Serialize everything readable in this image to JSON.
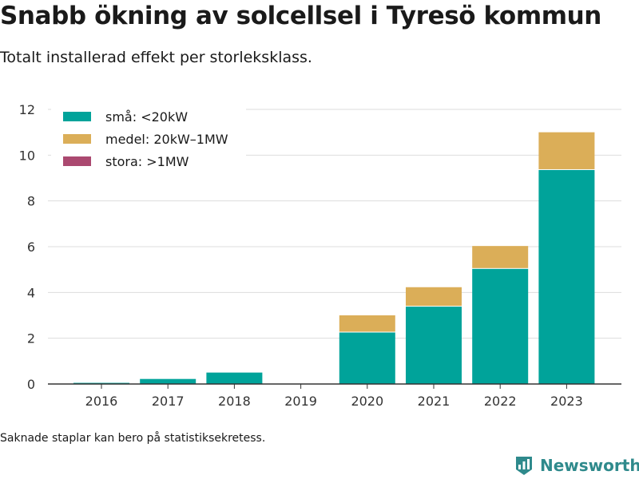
{
  "title": "Snabb ökning av solcellsel i Tyresö kommun",
  "subtitle": "Totalt installerad effekt per storleksklass.",
  "footnote": "Saknade staplar kan bero på statistiksekretess.",
  "brand": {
    "name": "Newsworthy",
    "icon": "bar-chart-logo-icon",
    "color": "#2f8a8c"
  },
  "chart_data": {
    "type": "bar",
    "stacked": true,
    "categories": [
      "2016",
      "2017",
      "2018",
      "2019",
      "2020",
      "2021",
      "2022",
      "2023"
    ],
    "series": [
      {
        "name": "små: <20kW",
        "color": "#00a39a",
        "values": [
          0.05,
          0.22,
          0.5,
          0,
          2.25,
          3.38,
          5.03,
          9.35
        ]
      },
      {
        "name": "medel: 20kW–1MW",
        "color": "#dbae58",
        "values": [
          0,
          0,
          0,
          0,
          0.75,
          0.85,
          1.0,
          1.65
        ]
      },
      {
        "name": "stora: >1MW",
        "color": "#ab4970",
        "values": [
          0,
          0,
          0,
          0,
          0,
          0,
          0,
          0
        ]
      }
    ],
    "ylim": [
      0,
      12
    ],
    "yticks": [
      0,
      2,
      4,
      6,
      8,
      10,
      12
    ],
    "grid": true,
    "legend_position": "top-left",
    "xlabel": "",
    "ylabel": ""
  }
}
